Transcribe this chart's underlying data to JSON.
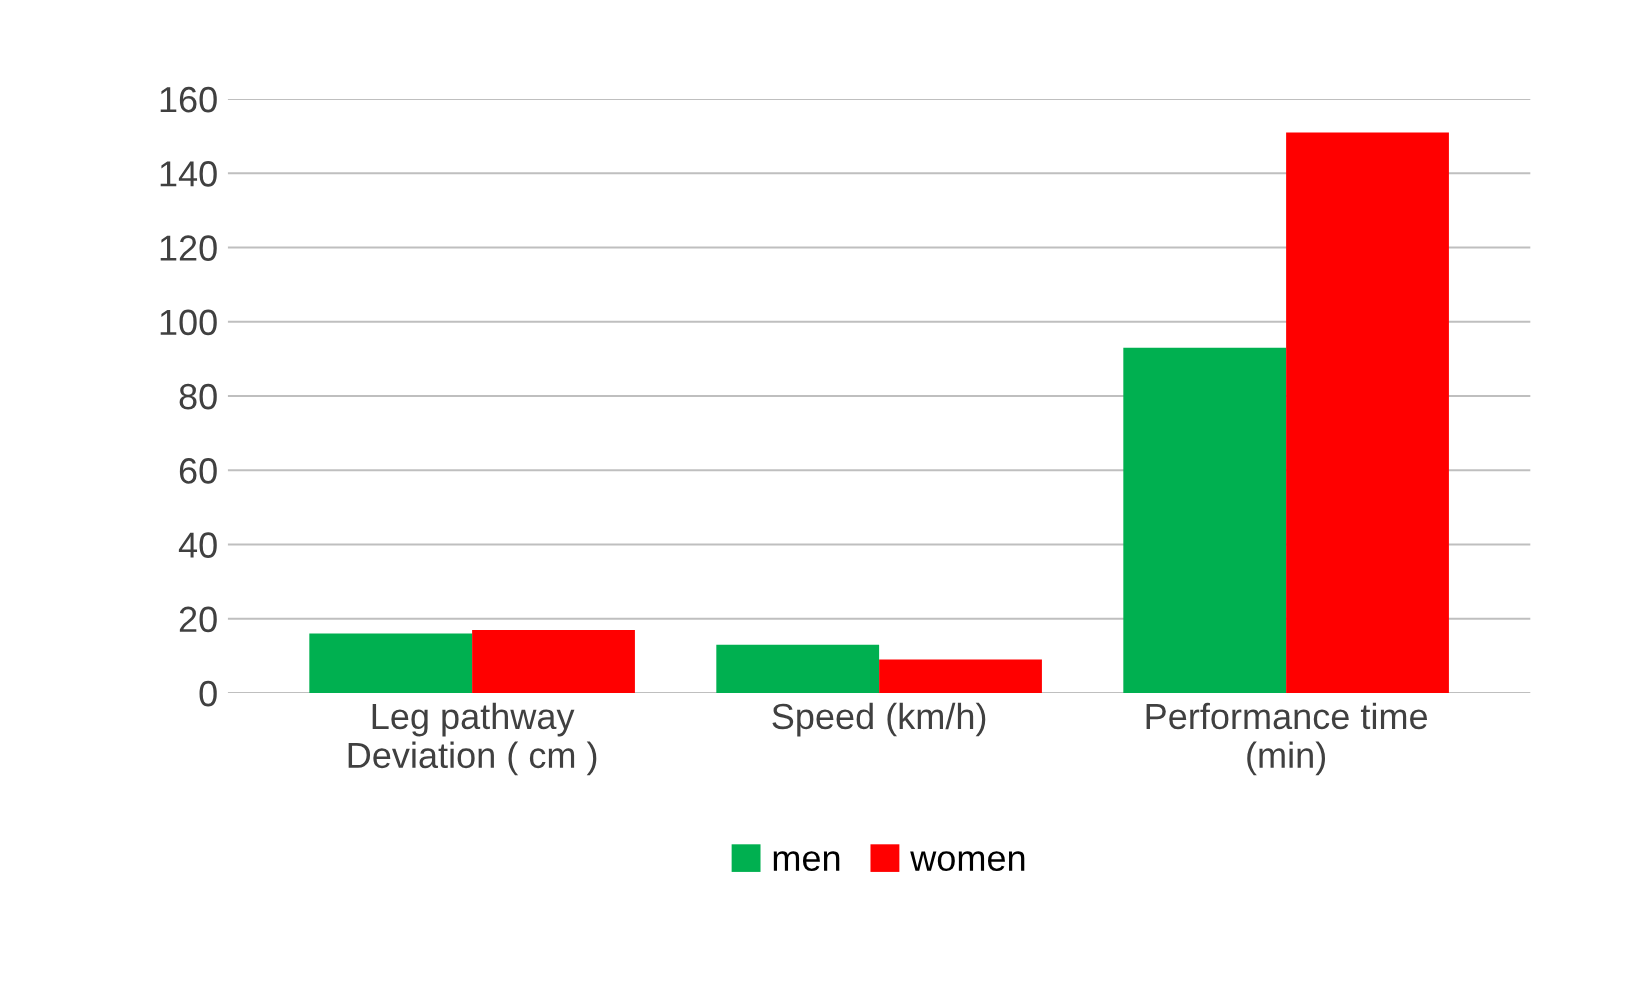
{
  "chart_data": {
    "type": "bar",
    "categories": [
      "Leg pathway\nDeviation ( cm )",
      "Speed (km/h)",
      "Performance time\n(min)"
    ],
    "series": [
      {
        "name": "men",
        "color": "#00b050",
        "values": [
          16,
          13,
          93
        ]
      },
      {
        "name": "women",
        "color": "#ff0000",
        "values": [
          17,
          9,
          151
        ]
      }
    ],
    "ylim": [
      0,
      160
    ],
    "yticks": [
      0,
      20,
      40,
      60,
      80,
      100,
      120,
      140,
      160
    ],
    "grid": "y",
    "legend": "bottom"
  }
}
